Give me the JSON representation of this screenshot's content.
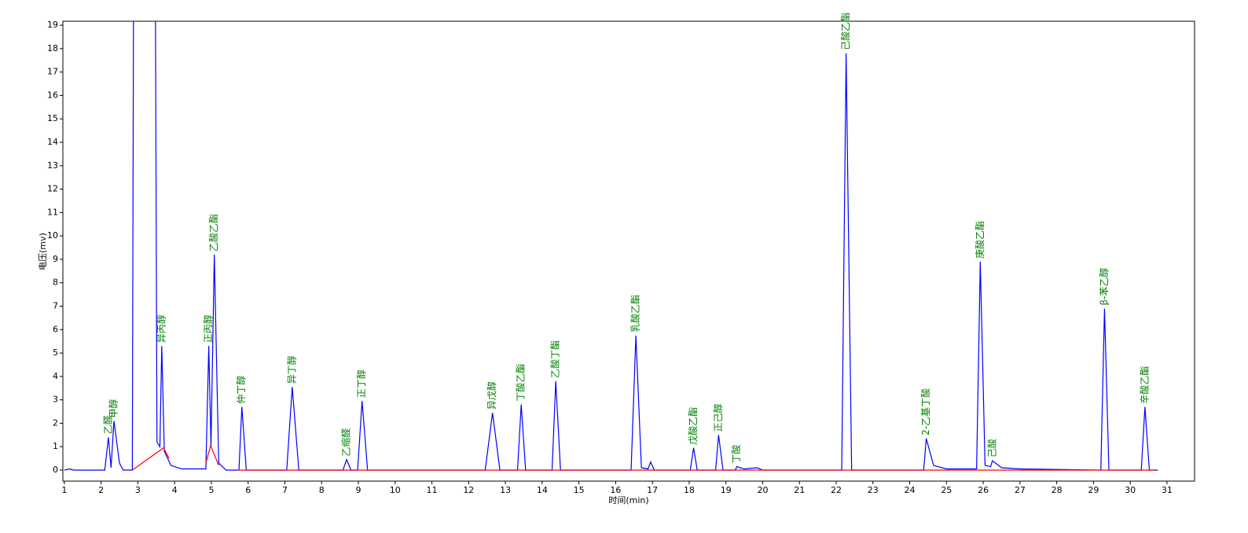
{
  "chart_data": {
    "type": "line",
    "xlabel": "时间(min)",
    "ylabel": "电压(mv)",
    "xlim": [
      0.96,
      31.75
    ],
    "ylim": [
      -0.47,
      19.17
    ],
    "xticks": [
      1,
      2,
      3,
      4,
      5,
      6,
      7,
      8,
      9,
      10,
      11,
      12,
      13,
      14,
      15,
      16,
      17,
      18,
      19,
      20,
      21,
      22,
      23,
      24,
      25,
      26,
      27,
      28,
      29,
      30,
      31
    ],
    "yticks": [
      0,
      1,
      2,
      3,
      4,
      5,
      6,
      7,
      8,
      9,
      10,
      11,
      12,
      13,
      14,
      15,
      16,
      17,
      18,
      19
    ],
    "series": [
      {
        "color": "#0000ff",
        "x": [
          1.0,
          1.15,
          1.25,
          2.1,
          2.2,
          2.27,
          2.35,
          2.5,
          2.6,
          2.85,
          2.88,
          3.48,
          3.52,
          3.6,
          3.65,
          3.72,
          3.9,
          4.2,
          4.85,
          4.93,
          4.99,
          5.08,
          5.2,
          5.4,
          5.75,
          5.83,
          5.95,
          7.05,
          7.2,
          7.38,
          8.58,
          8.68,
          8.8,
          8.98,
          9.1,
          9.25,
          12.45,
          12.65,
          12.85,
          13.33,
          13.43,
          13.55,
          14.27,
          14.37,
          14.5,
          16.42,
          16.55,
          16.7,
          16.88,
          16.95,
          17.05,
          18.03,
          18.12,
          18.22,
          18.72,
          18.8,
          18.92,
          19.25,
          19.3,
          19.5,
          19.85,
          20.0,
          22.15,
          22.27,
          22.42,
          24.38,
          24.45,
          24.65,
          25.0,
          25.82,
          25.92,
          26.05,
          26.2,
          26.25,
          26.5,
          27.0,
          29.2,
          29.3,
          29.42,
          30.3,
          30.4,
          30.52,
          30.75
        ],
        "values": [
          0,
          0.05,
          0,
          0,
          1.4,
          0.1,
          2.1,
          0.3,
          0,
          0,
          19.2,
          19.2,
          1.2,
          1.0,
          5.3,
          0.8,
          0.2,
          0.05,
          0.05,
          5.3,
          1.0,
          9.2,
          0.3,
          0,
          0,
          2.7,
          0,
          0,
          3.55,
          0,
          0,
          0.45,
          0,
          0,
          2.95,
          0,
          0,
          2.45,
          0,
          0,
          2.8,
          0,
          0,
          3.8,
          0,
          0,
          5.75,
          0.1,
          0.05,
          0.35,
          0,
          0,
          0.95,
          0,
          0,
          1.5,
          0,
          0,
          0.15,
          0.05,
          0.1,
          0,
          0,
          17.8,
          0,
          0,
          1.35,
          0.2,
          0.05,
          0.05,
          8.9,
          0.2,
          0.15,
          0.4,
          0.1,
          0.05,
          0,
          6.9,
          0,
          0,
          2.7,
          0,
          0
        ]
      },
      {
        "color": "#ff0000",
        "x": [
          2.85,
          3.7,
          3.85,
          null,
          4.85,
          4.98,
          5.2,
          null,
          5.7,
          30.7
        ],
        "values": [
          0,
          0.95,
          0.5,
          null,
          0.3,
          1.05,
          0.2,
          null,
          0,
          0
        ]
      }
    ],
    "annotations": [
      {
        "text": "乙醛",
        "x": 2.2,
        "y": 1.4
      },
      {
        "text": "甲醇",
        "x": 2.35,
        "y": 2.1
      },
      {
        "text": "异丙醇",
        "x": 3.65,
        "y": 5.3
      },
      {
        "text": "正丙醇",
        "x": 4.93,
        "y": 5.3
      },
      {
        "text": "乙酸乙酯",
        "x": 5.08,
        "y": 9.2
      },
      {
        "text": "仲丁醇",
        "x": 5.83,
        "y": 2.7
      },
      {
        "text": "异丁醇",
        "x": 7.2,
        "y": 3.55
      },
      {
        "text": "乙缩醛",
        "x": 8.68,
        "y": 0.45
      },
      {
        "text": "正丁醇",
        "x": 9.1,
        "y": 2.95
      },
      {
        "text": "异戊醇",
        "x": 12.65,
        "y": 2.45
      },
      {
        "text": "丁酸乙酯",
        "x": 13.43,
        "y": 2.8
      },
      {
        "text": "乙酸丁酯",
        "x": 14.37,
        "y": 3.8
      },
      {
        "text": "乳酸乙酯",
        "x": 16.55,
        "y": 5.75
      },
      {
        "text": "戊酸乙酯",
        "x": 18.12,
        "y": 0.95
      },
      {
        "text": "正己醇",
        "x": 18.8,
        "y": 1.5
      },
      {
        "text": "丁酸",
        "x": 19.3,
        "y": 0.15
      },
      {
        "text": "己酸乙酯",
        "x": 22.27,
        "y": 17.8
      },
      {
        "text": "2-乙基丁酸",
        "x": 24.45,
        "y": 1.35
      },
      {
        "text": "庚酸乙酯",
        "x": 25.92,
        "y": 8.9
      },
      {
        "text": "己酸",
        "x": 26.25,
        "y": 0.4
      },
      {
        "text": "β-苯乙醇",
        "x": 29.3,
        "y": 6.9
      },
      {
        "text": "辛酸乙酯",
        "x": 30.4,
        "y": 2.7
      }
    ],
    "annotation_color": "#008000"
  }
}
